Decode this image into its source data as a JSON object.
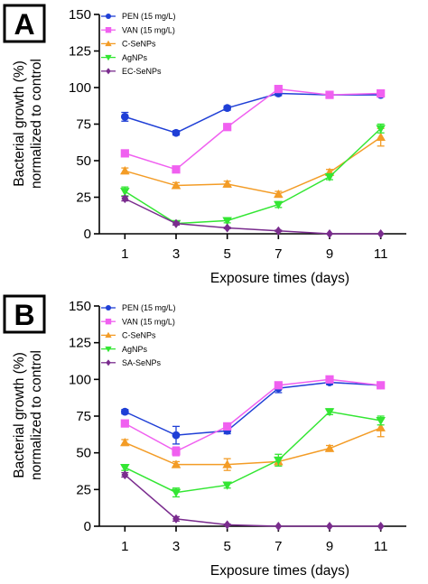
{
  "chart_data": [
    {
      "panel_label": "A",
      "type": "line",
      "x": [
        1,
        3,
        5,
        7,
        9,
        11
      ],
      "xlabel": "Exposure times (days)",
      "ylabel": [
        "Bacterial growth (%)",
        "normalized to control"
      ],
      "xlim": [
        0,
        12
      ],
      "ylim": [
        0,
        150
      ],
      "xticks": [
        "1",
        "3",
        "5",
        "7",
        "9",
        "11"
      ],
      "yticks": [
        "0",
        "25",
        "50",
        "75",
        "100",
        "125",
        "150"
      ],
      "grid": false,
      "legend_position": "top-left",
      "series": [
        {
          "name": "PEN (15 mg/L)",
          "color": "#1f3fd6",
          "marker": "circle",
          "values": [
            80,
            69,
            86,
            96,
            95,
            95
          ],
          "errors": [
            3,
            1.5,
            1.5,
            1.5,
            1,
            1
          ]
        },
        {
          "name": "VAN (15 mg/L)",
          "color": "#f060f0",
          "marker": "square",
          "values": [
            55,
            44,
            73,
            99,
            95,
            96
          ],
          "errors": [
            1.5,
            1.5,
            1.5,
            2,
            1,
            1.5
          ]
        },
        {
          "name": "C-SeNPs",
          "color": "#f39c26",
          "marker": "triangle-up",
          "values": [
            43,
            33,
            34,
            27,
            42,
            66
          ],
          "errors": [
            2,
            2,
            2,
            2,
            2,
            6
          ]
        },
        {
          "name": "AgNPs",
          "color": "#33e633",
          "marker": "triangle-down",
          "values": [
            29,
            7,
            9,
            20,
            39,
            72
          ],
          "errors": [
            3,
            1,
            1.5,
            2,
            2,
            3
          ]
        },
        {
          "name": "EC-SeNPs",
          "color": "#7a2c8e",
          "marker": "diamond",
          "values": [
            24,
            7,
            4,
            2,
            0,
            0
          ],
          "errors": [
            1.5,
            1,
            0.5,
            0.5,
            0.3,
            0.3
          ]
        }
      ]
    },
    {
      "panel_label": "B",
      "type": "line",
      "x": [
        1,
        3,
        5,
        7,
        9,
        11
      ],
      "xlabel": "Exposure times (days)",
      "ylabel": [
        "Bacterial growth (%)",
        "normalized to control"
      ],
      "xlim": [
        0,
        12
      ],
      "ylim": [
        0,
        150
      ],
      "xticks": [
        "1",
        "3",
        "5",
        "7",
        "9",
        "11"
      ],
      "yticks": [
        "0",
        "25",
        "50",
        "75",
        "100",
        "125",
        "150"
      ],
      "grid": false,
      "legend_position": "top-left",
      "series": [
        {
          "name": "PEN (15 mg/L)",
          "color": "#1f3fd6",
          "marker": "circle",
          "values": [
            78,
            62,
            65,
            94,
            98,
            96
          ],
          "errors": [
            1.5,
            6,
            2,
            3,
            1.5,
            1.5
          ]
        },
        {
          "name": "VAN (15 mg/L)",
          "color": "#f060f0",
          "marker": "square",
          "values": [
            70,
            51,
            68,
            96,
            100,
            96
          ],
          "errors": [
            1.5,
            3,
            1.5,
            2,
            1.5,
            1.5
          ]
        },
        {
          "name": "C-SeNPs",
          "color": "#f39c26",
          "marker": "triangle-up",
          "values": [
            57,
            42,
            42,
            44,
            53,
            67
          ],
          "errors": [
            2,
            2,
            4,
            3,
            2,
            6
          ]
        },
        {
          "name": "AgNPs",
          "color": "#33e633",
          "marker": "triangle-down",
          "values": [
            40,
            23,
            28,
            45,
            78,
            72
          ],
          "errors": [
            2,
            3,
            2,
            4,
            2,
            3
          ]
        },
        {
          "name": "SA-SeNPs",
          "color": "#7a2c8e",
          "marker": "diamond",
          "values": [
            35,
            5,
            1,
            0,
            0,
            0
          ],
          "errors": [
            1.5,
            1.5,
            0.5,
            0.3,
            0.3,
            0.3
          ]
        }
      ]
    }
  ]
}
